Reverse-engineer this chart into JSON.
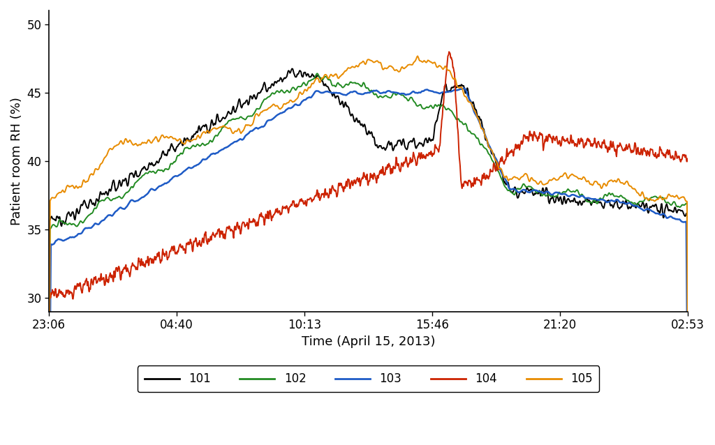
{
  "title": "",
  "xlabel": "Time (April 15, 2013)",
  "ylabel": "Patient room RH (%)",
  "ylim": [
    29,
    51
  ],
  "yticks": [
    30,
    35,
    40,
    45,
    50
  ],
  "xtick_labels": [
    "23:06",
    "04:40",
    "10:13",
    "15:46",
    "21:20",
    "02:53"
  ],
  "line_colors": {
    "101": "#000000",
    "102": "#228B22",
    "103": "#1E5BC6",
    "104": "#CC2200",
    "105": "#E88C00"
  },
  "line_widths": {
    "101": 1.4,
    "102": 1.4,
    "103": 1.8,
    "104": 1.4,
    "105": 1.4
  },
  "legend_labels": [
    "101",
    "102",
    "103",
    "104",
    "105"
  ],
  "background_color": "#ffffff",
  "num_points": 1668
}
